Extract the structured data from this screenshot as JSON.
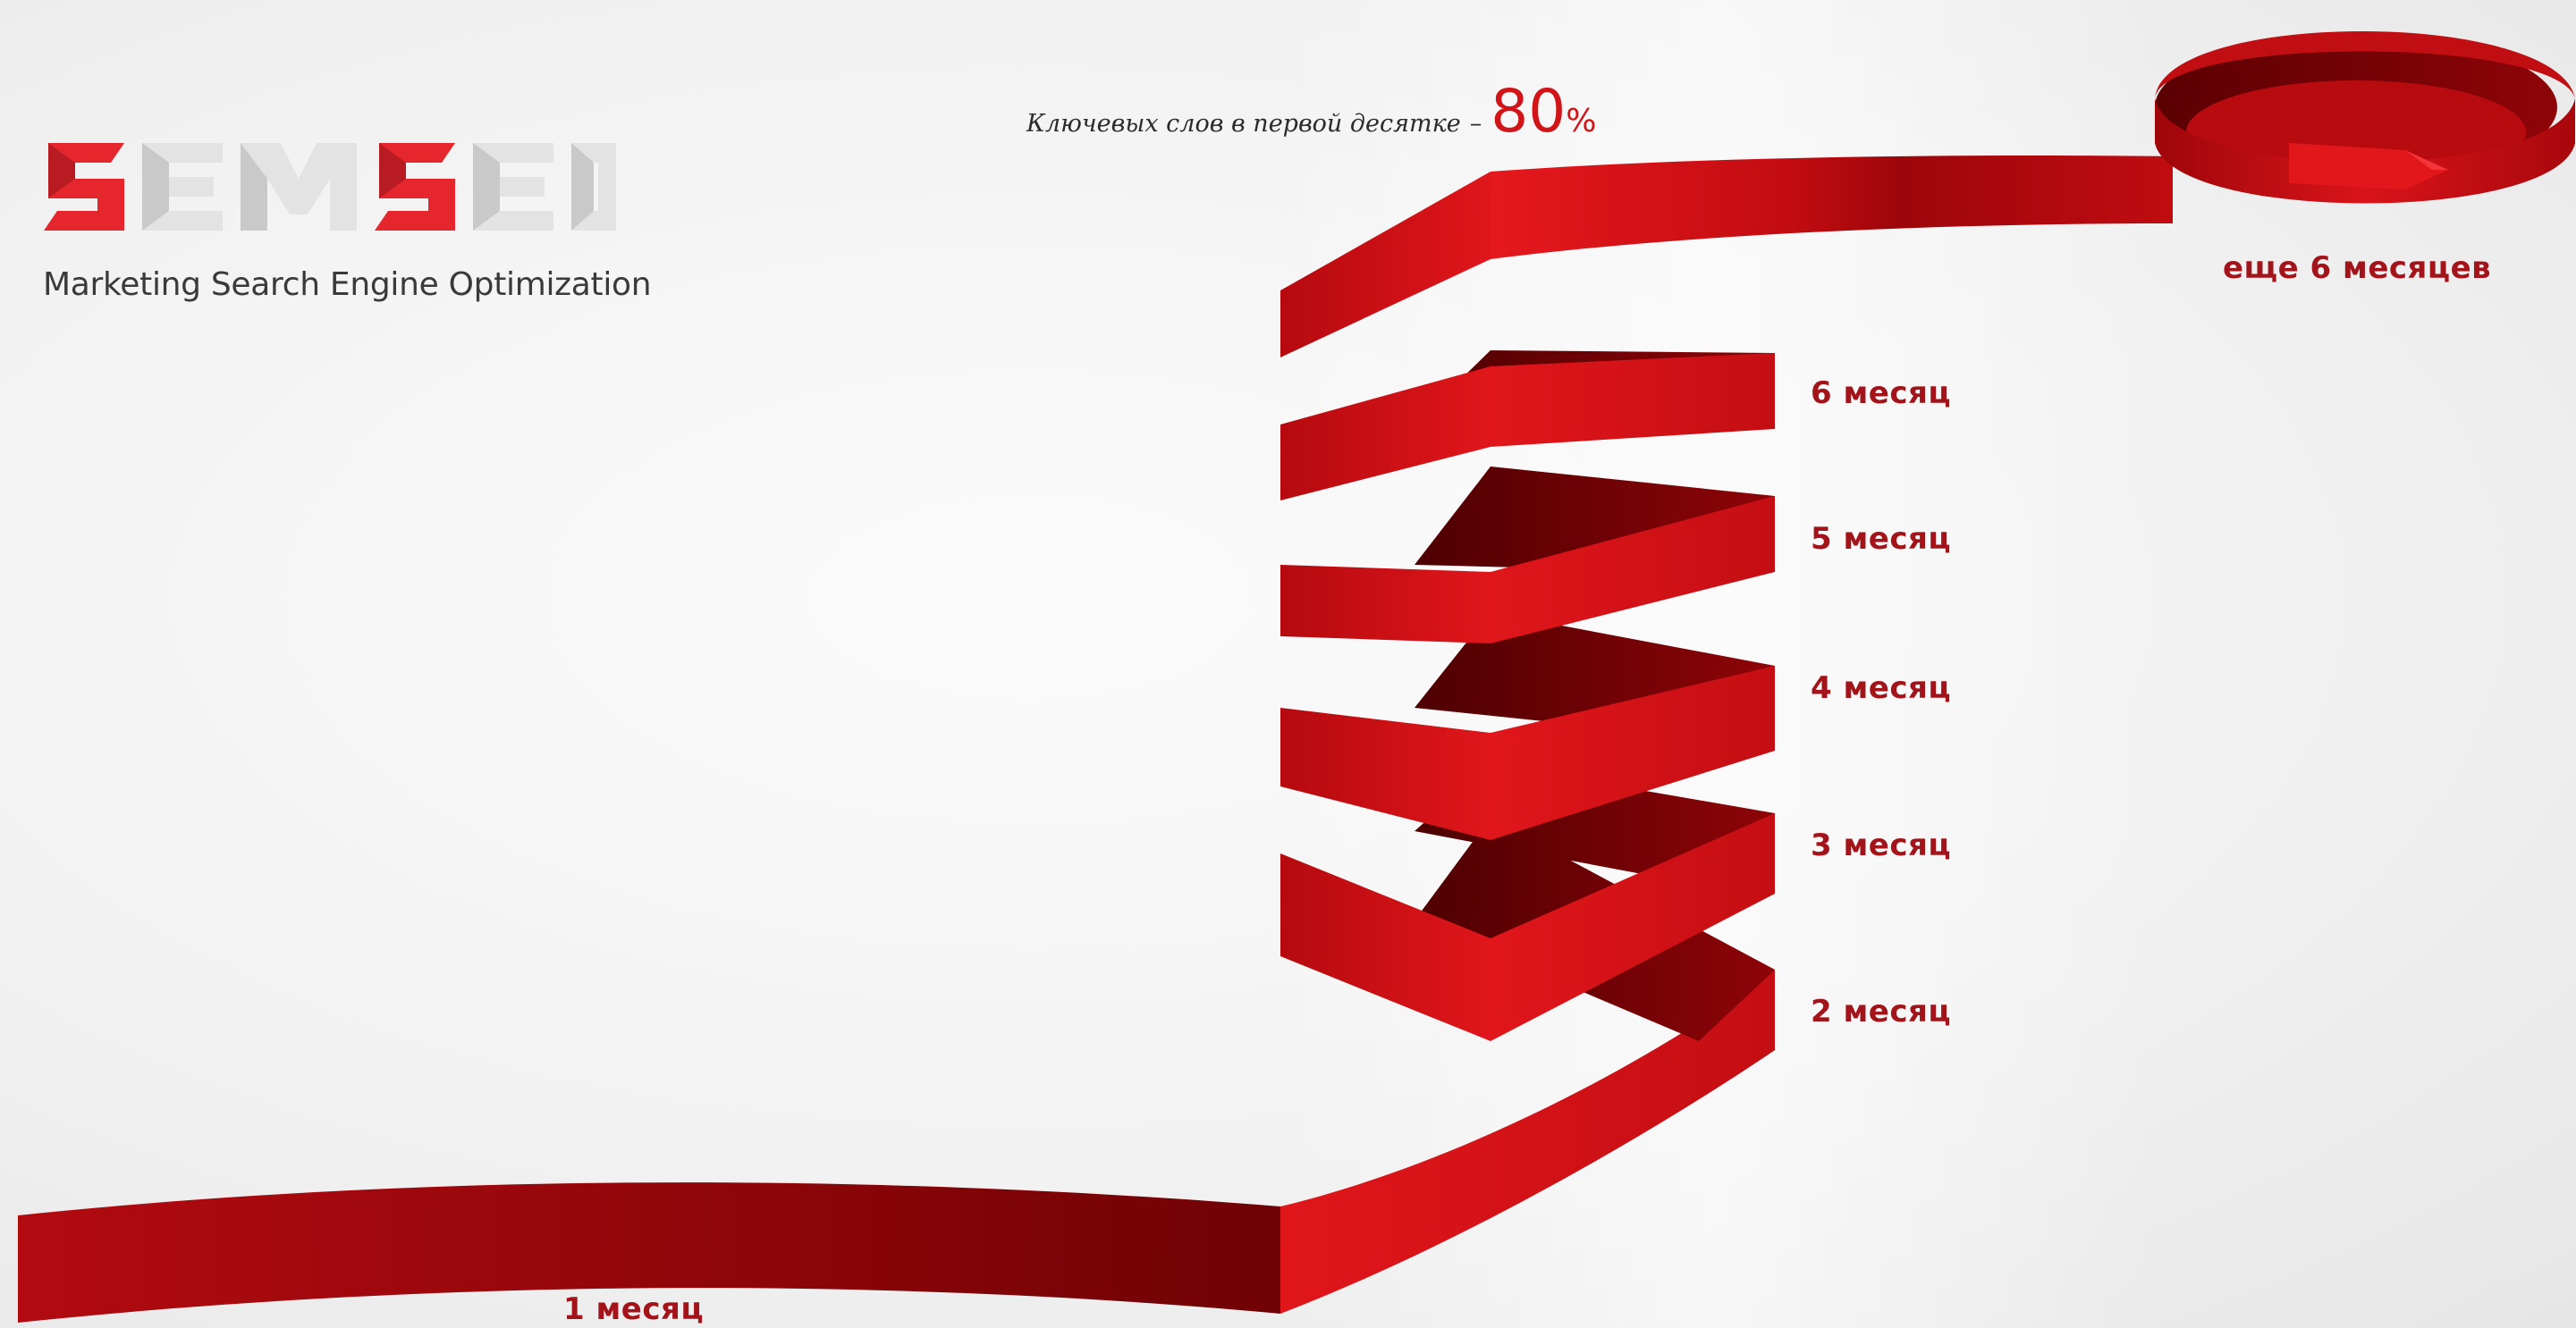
{
  "logo": {
    "letters": [
      "S",
      "E",
      "M",
      "S",
      "E",
      "O"
    ],
    "tagline": "Marketing Search Engine Optimization",
    "accent_color": "#e5262c",
    "neutral_color": "#e3e3e3"
  },
  "headline": {
    "text": "Ключевых слов в первой десятке",
    "dash": "–",
    "value": "80",
    "unit": "%"
  },
  "timeline": {
    "ribbon_color": "#d40f14",
    "ribbon_dark_color": "#7a0205",
    "label_color": "#a3141a",
    "labels": {
      "month1": "1 месяц",
      "month2": "2 месяц",
      "month3": "3 месяц",
      "month4": "4 месяц",
      "month5": "5 месяц",
      "month6": "6 месяц",
      "more": "еще 6 месяцев"
    }
  }
}
